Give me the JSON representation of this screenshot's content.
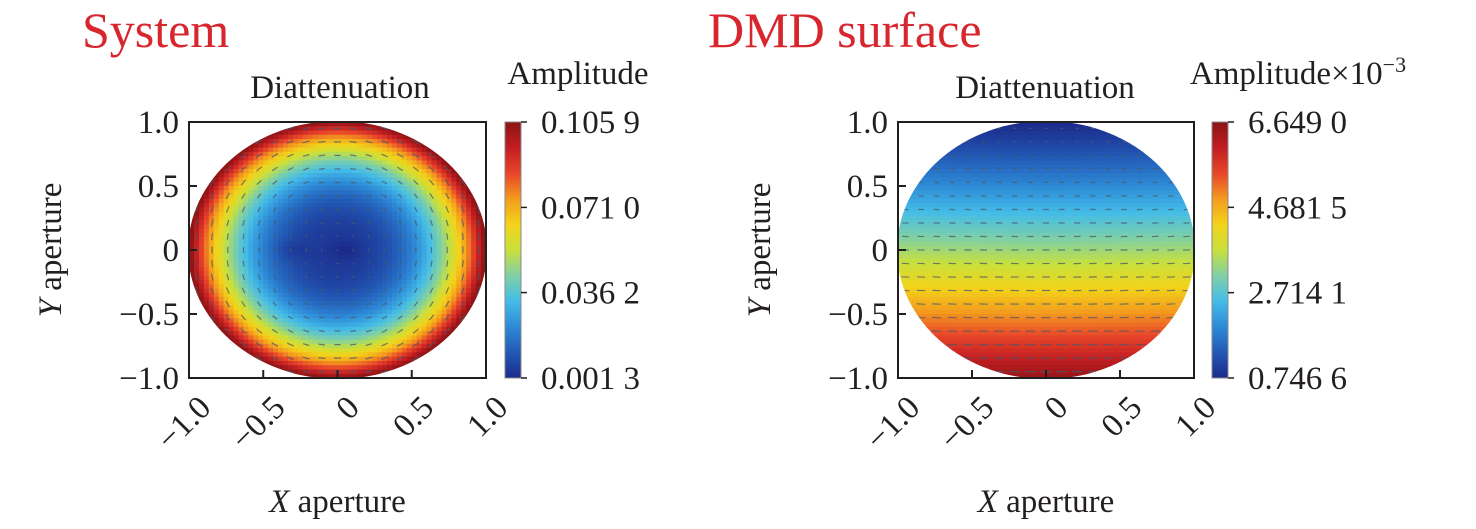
{
  "panel_titles": {
    "left": "System",
    "right": "DMD surface",
    "color": "#d7262e"
  },
  "chart_data": [
    {
      "type": "heatmap",
      "panel": "System",
      "title": "Diattenuation",
      "xlabel_var": "X",
      "xlabel_rest": " aperture",
      "ylabel_var": "Y",
      "ylabel_rest": " aperture",
      "xlim": [
        -1.0,
        1.0
      ],
      "ylim": [
        -1.0,
        1.0
      ],
      "x_ticks": [
        -1.0,
        -0.5,
        0,
        0.5,
        1.0
      ],
      "x_tick_labels": [
        "−1.0",
        "−0.5",
        "0",
        "0.5",
        "1.0"
      ],
      "y_ticks": [
        1.0,
        0.5,
        0,
        -0.5,
        -1.0
      ],
      "y_tick_labels": [
        "1.0",
        "0.5",
        "0",
        "−0.5",
        "−1.0"
      ],
      "pupil_shape": "ellipse, full x and y aperture",
      "pattern": "radial: minimum in center (two minima near x=-0.3 and x=0.05, y=0), maximum at edge",
      "colorbar": {
        "label": "Amplitude",
        "label_exp": "",
        "min": 0.0013,
        "max": 0.1059,
        "ticks": [
          0.1059,
          0.071,
          0.0362,
          0.0013
        ],
        "tick_labels": [
          "0.105 9",
          "0.071 0",
          "0.036 2",
          "0.001 3"
        ]
      }
    },
    {
      "type": "heatmap",
      "panel": "DMD surface",
      "title": "Diattenuation",
      "xlabel_var": "X",
      "xlabel_rest": " aperture",
      "ylabel_var": "Y",
      "ylabel_rest": " aperture",
      "xlim": [
        -1.0,
        1.0
      ],
      "ylim": [
        -1.0,
        1.0
      ],
      "x_ticks": [
        -1.0,
        -0.5,
        0,
        0.5,
        1.0
      ],
      "x_tick_labels": [
        "−1.0",
        "−0.5",
        "0",
        "0.5",
        "1.0"
      ],
      "y_ticks": [
        1.0,
        0.5,
        0,
        -0.5,
        -1.0
      ],
      "y_tick_labels": [
        "1.0",
        "0.5",
        "0",
        "−0.5",
        "−1.0"
      ],
      "pupil_shape": "circle",
      "pattern": "vertical gradient: minimum at top (y=1), maximum at bottom (y=-1)",
      "colorbar": {
        "label": "Amplitude×10",
        "label_exp": "−3",
        "min": 0.7466,
        "max": 6.649,
        "ticks": [
          6.649,
          4.6815,
          2.7141,
          0.7466
        ],
        "tick_labels": [
          "6.649 0",
          "4.681 5",
          "2.714 1",
          "0.746 6"
        ]
      }
    }
  ],
  "colormap": {
    "name": "jet",
    "stops": [
      "#1c2a8a",
      "#2259b5",
      "#2e8ad6",
      "#44bce8",
      "#7fd0a6",
      "#c9e03c",
      "#f3d31a",
      "#f39b1e",
      "#e8452a",
      "#c11d22",
      "#8b1414"
    ]
  }
}
